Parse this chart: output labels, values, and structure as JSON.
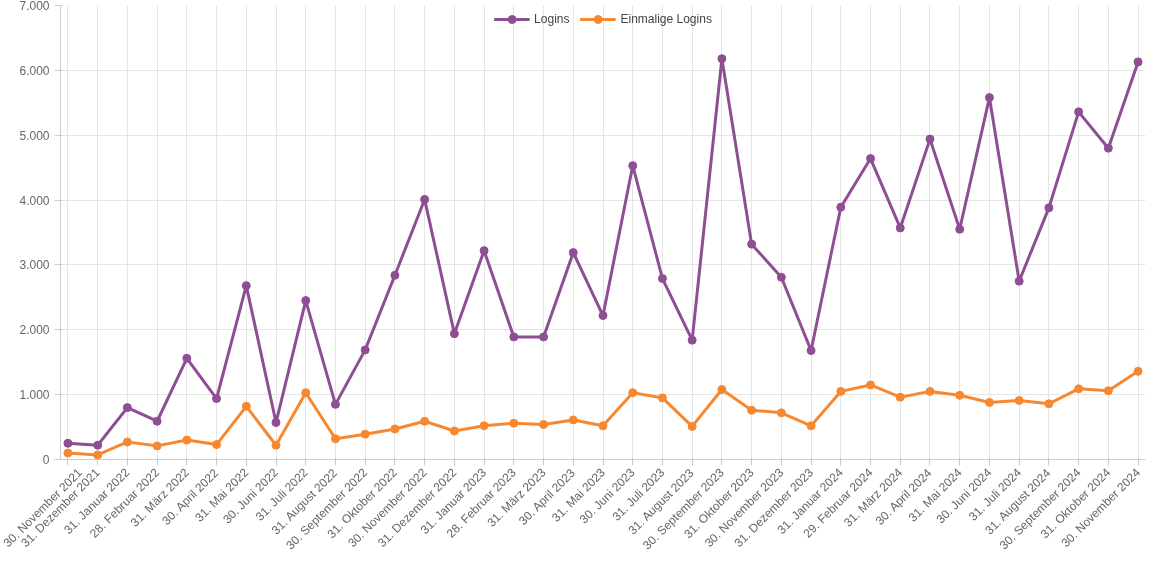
{
  "chart_data": {
    "type": "line",
    "categories": [
      "30. November 2021",
      "31. Dezember 2021",
      "31. Januar 2022",
      "28. Februar 2022",
      "31. März 2022",
      "30. April 2022",
      "31. Mai 2022",
      "30. Juni 2022",
      "31. Juli 2022",
      "31. August 2022",
      "30. September 2022",
      "31. Oktober 2022",
      "30. November 2022",
      "31. Dezember 2022",
      "31. Januar 2023",
      "28. Februar 2023",
      "31. März 2023",
      "30. April 2023",
      "31. Mai 2023",
      "30. Juni 2023",
      "31. Juli 2023",
      "31. August 2023",
      "30. September 2023",
      "31. Oktober 2023",
      "30. November 2023",
      "31. Dezember 2023",
      "31. Januar 2024",
      "29. Februar 2024",
      "31. März 2024",
      "30. April 2024",
      "31. Mai 2024",
      "30. Juni 2024",
      "31. Juli 2024",
      "31. August 2024",
      "30. September 2024",
      "31. Oktober 2024",
      "30. November 2024"
    ],
    "series": [
      {
        "name": "Logins",
        "color": "#8e4e94",
        "values": [
          250,
          220,
          800,
          590,
          1560,
          940,
          2680,
          570,
          2450,
          850,
          1690,
          2840,
          4010,
          1940,
          3220,
          1890,
          1890,
          3190,
          2220,
          4530,
          2790,
          1840,
          6180,
          3320,
          2810,
          1680,
          3890,
          4640,
          3570,
          4940,
          3550,
          5580,
          2750,
          3880,
          5360,
          4800,
          6130
        ]
      },
      {
        "name": "Einmalige Logins",
        "color": "#f7882f",
        "values": [
          100,
          70,
          270,
          210,
          300,
          230,
          820,
          220,
          1030,
          320,
          390,
          470,
          590,
          440,
          520,
          560,
          540,
          610,
          520,
          1030,
          950,
          510,
          1080,
          760,
          720,
          520,
          1050,
          1150,
          960,
          1050,
          990,
          880,
          910,
          860,
          1090,
          1060,
          1360
        ]
      }
    ],
    "ylim": [
      0,
      7000
    ],
    "yticks": [
      {
        "value": 0,
        "label": "0"
      },
      {
        "value": 1000,
        "label": "1.000"
      },
      {
        "value": 2000,
        "label": "2.000"
      },
      {
        "value": 3000,
        "label": "3.000"
      },
      {
        "value": 4000,
        "label": "4.000"
      },
      {
        "value": 5000,
        "label": "5.000"
      },
      {
        "value": 6000,
        "label": "6.000"
      },
      {
        "value": 7000,
        "label": "7.000"
      }
    ],
    "grid": true,
    "legend": "top",
    "marker": "circle",
    "line_style": "solid"
  }
}
